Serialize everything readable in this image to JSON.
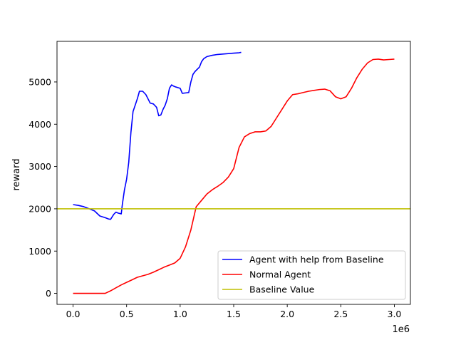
{
  "chart_data": {
    "type": "line",
    "title": "",
    "xlabel": "",
    "ylabel": "reward",
    "x_offset_label": "1e6",
    "xlim": [
      -0.15,
      3.15
    ],
    "ylim": [
      -260,
      5960
    ],
    "x_ticks": [
      0.0,
      0.5,
      1.0,
      1.5,
      2.0,
      2.5,
      3.0
    ],
    "x_tick_labels": [
      "0.0",
      "0.5",
      "1.0",
      "1.5",
      "2.0",
      "2.5",
      "3.0"
    ],
    "y_ticks": [
      0,
      1000,
      2000,
      3000,
      4000,
      5000
    ],
    "y_tick_labels": [
      "0",
      "1000",
      "2000",
      "3000",
      "4000",
      "5000"
    ],
    "grid": false,
    "legend_position": "lower right",
    "series": [
      {
        "name": "Agent with help from Baseline",
        "color": "#0000ff",
        "x": [
          0.0,
          0.05,
          0.1,
          0.15,
          0.2,
          0.25,
          0.3,
          0.33,
          0.35,
          0.38,
          0.4,
          0.42,
          0.45,
          0.46,
          0.48,
          0.5,
          0.52,
          0.54,
          0.56,
          0.58,
          0.6,
          0.62,
          0.65,
          0.68,
          0.7,
          0.72,
          0.75,
          0.78,
          0.8,
          0.82,
          0.84,
          0.86,
          0.88,
          0.9,
          0.92,
          0.94,
          0.96,
          1.0,
          1.02,
          1.05,
          1.08,
          1.1,
          1.12,
          1.14,
          1.18,
          1.2,
          1.22,
          1.25,
          1.3,
          1.35,
          1.4,
          1.45,
          1.5,
          1.55,
          1.57
        ],
        "y": [
          2100,
          2080,
          2050,
          2000,
          1950,
          1830,
          1790,
          1760,
          1750,
          1870,
          1920,
          1900,
          1880,
          2100,
          2450,
          2700,
          3100,
          3800,
          4300,
          4450,
          4600,
          4780,
          4780,
          4700,
          4600,
          4500,
          4480,
          4400,
          4200,
          4220,
          4350,
          4450,
          4600,
          4850,
          4930,
          4900,
          4880,
          4850,
          4730,
          4740,
          4750,
          5000,
          5180,
          5250,
          5350,
          5480,
          5550,
          5600,
          5630,
          5650,
          5660,
          5670,
          5680,
          5690,
          5700
        ]
      },
      {
        "name": "Normal Agent",
        "color": "#ff0000",
        "x": [
          0.0,
          0.1,
          0.2,
          0.3,
          0.35,
          0.4,
          0.45,
          0.5,
          0.55,
          0.6,
          0.7,
          0.75,
          0.8,
          0.85,
          0.9,
          0.95,
          1.0,
          1.05,
          1.1,
          1.15,
          1.2,
          1.25,
          1.3,
          1.35,
          1.4,
          1.45,
          1.5,
          1.55,
          1.6,
          1.65,
          1.7,
          1.75,
          1.8,
          1.85,
          1.9,
          1.95,
          2.0,
          2.05,
          2.1,
          2.15,
          2.2,
          2.25,
          2.3,
          2.35,
          2.4,
          2.45,
          2.5,
          2.55,
          2.6,
          2.65,
          2.7,
          2.75,
          2.8,
          2.85,
          2.9,
          2.95,
          3.0
        ],
        "y": [
          0,
          0,
          0,
          0,
          60,
          130,
          200,
          260,
          320,
          380,
          450,
          500,
          560,
          620,
          670,
          720,
          830,
          1100,
          1500,
          2050,
          2200,
          2350,
          2450,
          2530,
          2620,
          2750,
          2950,
          3450,
          3700,
          3780,
          3820,
          3820,
          3840,
          3950,
          4150,
          4350,
          4550,
          4700,
          4720,
          4750,
          4780,
          4800,
          4820,
          4830,
          4790,
          4650,
          4600,
          4650,
          4850,
          5100,
          5300,
          5450,
          5530,
          5540,
          5520,
          5530,
          5540
        ]
      },
      {
        "name": "Baseline Value",
        "color": "#bfbf00",
        "x": [
          -0.15,
          3.15
        ],
        "y": [
          2000,
          2000
        ]
      }
    ]
  }
}
